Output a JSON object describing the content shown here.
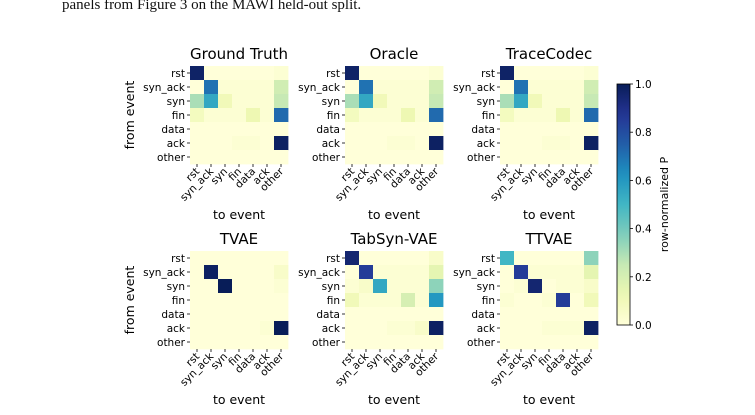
{
  "caption": "panels from Figure 3 on the MAWI held-out split.",
  "chart_data": {
    "type": "heatmap",
    "xlabel": "to event",
    "ylabel": "from event",
    "categories": [
      "rst",
      "syn_ack",
      "syn",
      "fin",
      "data",
      "ack",
      "other"
    ],
    "colorbar": {
      "label": "row-normalized P",
      "range": [
        0.0,
        1.0
      ],
      "ticks": [
        "0.0",
        "0.2",
        "0.4",
        "0.6",
        "0.8",
        "1.0"
      ],
      "colormap": "YlGnBu"
    },
    "panels": [
      {
        "title": "Ground Truth",
        "matrix": [
          [
            0.97,
            0.0,
            0.0,
            0.0,
            0.0,
            0.0,
            0.02
          ],
          [
            0.0,
            0.7,
            0.02,
            0.02,
            0.02,
            0.02,
            0.22
          ],
          [
            0.3,
            0.55,
            0.1,
            0.02,
            0.02,
            0.02,
            0.25
          ],
          [
            0.08,
            0.02,
            0.02,
            0.02,
            0.12,
            0.02,
            0.72
          ],
          [
            0.0,
            0.0,
            0.0,
            0.0,
            0.0,
            0.0,
            0.0
          ],
          [
            0.0,
            0.0,
            0.0,
            0.02,
            0.02,
            0.0,
            0.98
          ],
          [
            0.0,
            0.0,
            0.0,
            0.0,
            0.0,
            0.0,
            0.0
          ]
        ]
      },
      {
        "title": "Oracle",
        "matrix": [
          [
            0.97,
            0.0,
            0.0,
            0.0,
            0.0,
            0.0,
            0.02
          ],
          [
            0.0,
            0.7,
            0.02,
            0.02,
            0.02,
            0.02,
            0.22
          ],
          [
            0.3,
            0.55,
            0.1,
            0.02,
            0.02,
            0.02,
            0.25
          ],
          [
            0.08,
            0.02,
            0.02,
            0.02,
            0.12,
            0.02,
            0.72
          ],
          [
            0.0,
            0.0,
            0.0,
            0.0,
            0.0,
            0.0,
            0.0
          ],
          [
            0.0,
            0.0,
            0.0,
            0.02,
            0.02,
            0.0,
            0.98
          ],
          [
            0.0,
            0.0,
            0.0,
            0.0,
            0.0,
            0.0,
            0.0
          ]
        ]
      },
      {
        "title": "TraceCodec",
        "matrix": [
          [
            0.97,
            0.0,
            0.0,
            0.0,
            0.0,
            0.0,
            0.02
          ],
          [
            0.0,
            0.7,
            0.02,
            0.02,
            0.02,
            0.02,
            0.22
          ],
          [
            0.3,
            0.55,
            0.1,
            0.02,
            0.02,
            0.02,
            0.25
          ],
          [
            0.08,
            0.02,
            0.02,
            0.02,
            0.12,
            0.02,
            0.72
          ],
          [
            0.0,
            0.0,
            0.0,
            0.0,
            0.0,
            0.0,
            0.0
          ],
          [
            0.0,
            0.0,
            0.0,
            0.02,
            0.02,
            0.0,
            0.98
          ],
          [
            0.0,
            0.0,
            0.0,
            0.0,
            0.0,
            0.0,
            0.0
          ]
        ]
      },
      {
        "title": "TVAE",
        "matrix": [
          [
            0.0,
            0.0,
            0.0,
            0.0,
            0.0,
            0.0,
            0.0
          ],
          [
            0.0,
            0.98,
            0.0,
            0.0,
            0.0,
            0.0,
            0.05
          ],
          [
            0.0,
            0.0,
            1.0,
            0.0,
            0.0,
            0.0,
            0.02
          ],
          [
            0.0,
            0.0,
            0.0,
            0.0,
            0.0,
            0.0,
            0.0
          ],
          [
            0.0,
            0.0,
            0.0,
            0.0,
            0.0,
            0.0,
            0.0
          ],
          [
            0.0,
            0.0,
            0.0,
            0.0,
            0.0,
            0.02,
            1.0
          ],
          [
            0.0,
            0.0,
            0.0,
            0.0,
            0.0,
            0.0,
            0.0
          ]
        ]
      },
      {
        "title": "TabSyn-VAE",
        "matrix": [
          [
            0.95,
            0.0,
            0.0,
            0.0,
            0.0,
            0.0,
            0.05
          ],
          [
            0.0,
            0.85,
            0.02,
            0.02,
            0.02,
            0.02,
            0.15
          ],
          [
            0.02,
            0.05,
            0.55,
            0.02,
            0.02,
            0.02,
            0.35
          ],
          [
            0.1,
            0.02,
            0.02,
            0.02,
            0.2,
            0.02,
            0.6
          ],
          [
            0.0,
            0.0,
            0.0,
            0.0,
            0.0,
            0.0,
            0.0
          ],
          [
            0.0,
            0.0,
            0.0,
            0.02,
            0.02,
            0.05,
            0.98
          ],
          [
            0.0,
            0.0,
            0.0,
            0.0,
            0.0,
            0.0,
            0.0
          ]
        ]
      },
      {
        "title": "TTVAE",
        "matrix": [
          [
            0.5,
            0.0,
            0.0,
            0.0,
            0.0,
            0.0,
            0.35
          ],
          [
            0.0,
            0.85,
            0.02,
            0.02,
            0.02,
            0.02,
            0.15
          ],
          [
            0.0,
            0.02,
            0.95,
            0.0,
            0.02,
            0.02,
            0.05
          ],
          [
            0.02,
            0.0,
            0.0,
            0.02,
            0.85,
            0.0,
            0.1
          ],
          [
            0.0,
            0.0,
            0.0,
            0.0,
            0.0,
            0.0,
            0.0
          ],
          [
            0.0,
            0.0,
            0.0,
            0.02,
            0.02,
            0.02,
            0.98
          ],
          [
            0.0,
            0.0,
            0.0,
            0.0,
            0.0,
            0.0,
            0.0
          ]
        ]
      }
    ]
  }
}
